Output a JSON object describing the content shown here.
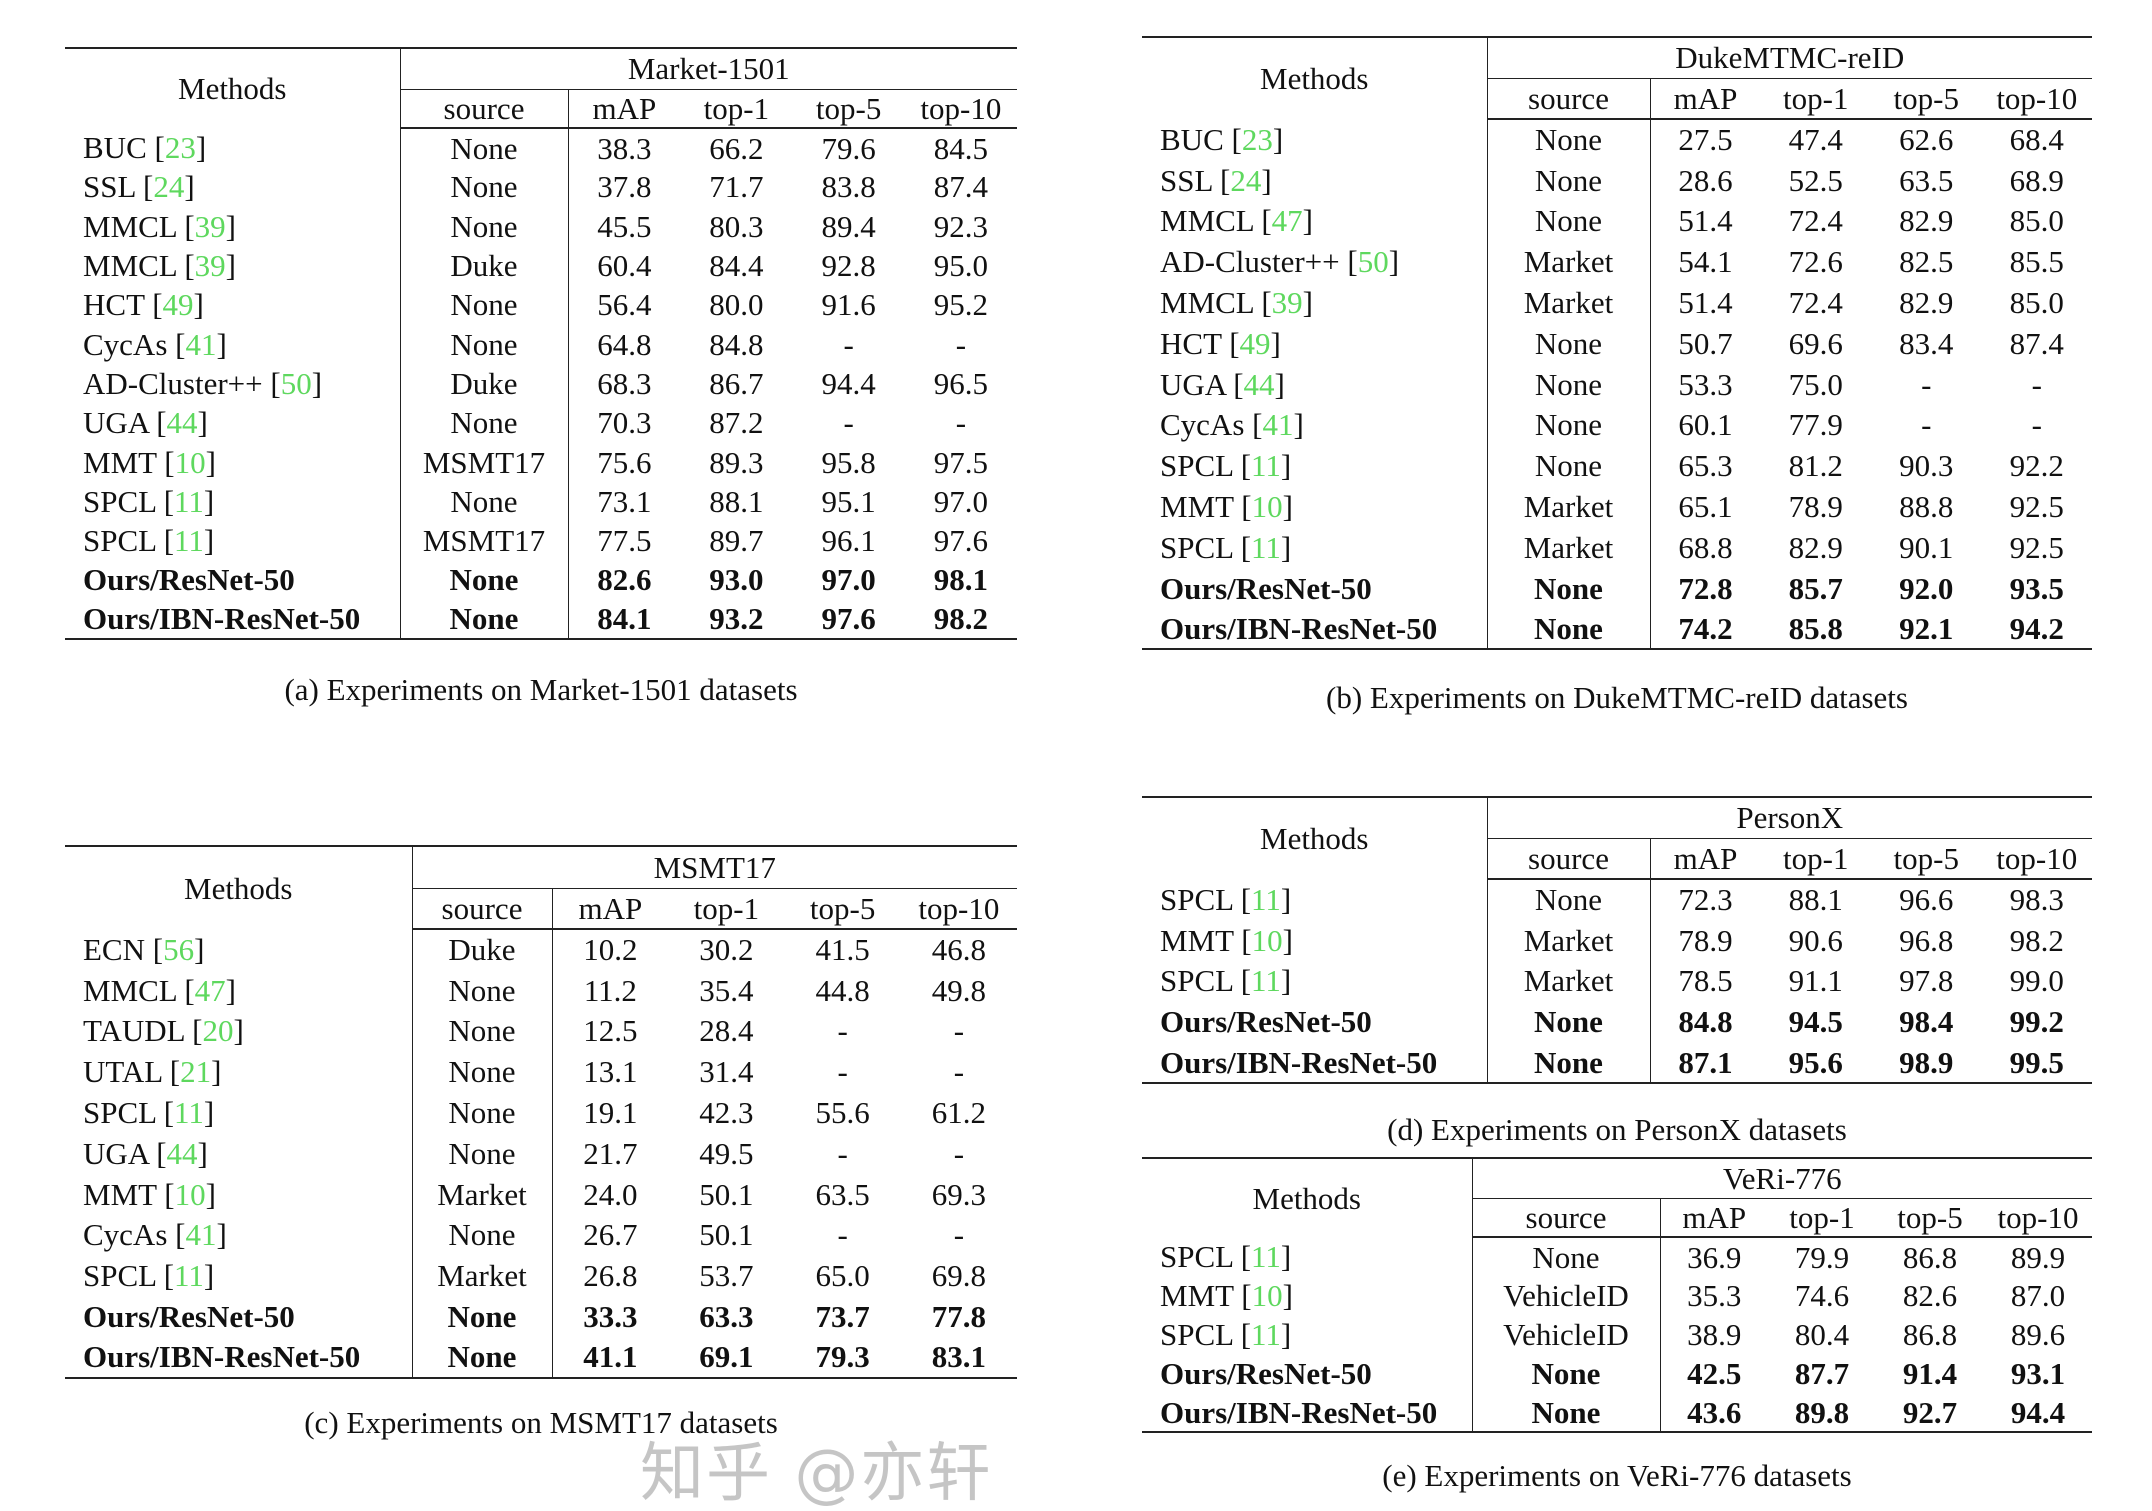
{
  "colors": {
    "ref_link": "#5ed85e",
    "text": "#111111",
    "rule": "#222222"
  },
  "columns": {
    "methods": "Methods",
    "source": "source",
    "metrics": [
      "mAP",
      "top-1",
      "top-5",
      "top-10"
    ]
  },
  "tables": [
    {
      "id": "a",
      "dataset": "Market-1501",
      "caption": "(a) Experiments on Market-1501 datasets",
      "rows": [
        {
          "name": "BUC",
          "ref": "23",
          "source": "None",
          "values": [
            "38.3",
            "66.2",
            "79.6",
            "84.5"
          ]
        },
        {
          "name": "SSL",
          "ref": "24",
          "source": "None",
          "values": [
            "37.8",
            "71.7",
            "83.8",
            "87.4"
          ]
        },
        {
          "name": "MMCL",
          "ref": "39",
          "source": "None",
          "values": [
            "45.5",
            "80.3",
            "89.4",
            "92.3"
          ]
        },
        {
          "name": "MMCL",
          "ref": "39",
          "source": "Duke",
          "values": [
            "60.4",
            "84.4",
            "92.8",
            "95.0"
          ]
        },
        {
          "name": "HCT",
          "ref": "49",
          "source": "None",
          "values": [
            "56.4",
            "80.0",
            "91.6",
            "95.2"
          ]
        },
        {
          "name": "CycAs",
          "ref": "41",
          "source": "None",
          "values": [
            "64.8",
            "84.8",
            "-",
            "-"
          ]
        },
        {
          "name": "AD-Cluster++",
          "ref": "50",
          "source": "Duke",
          "values": [
            "68.3",
            "86.7",
            "94.4",
            "96.5"
          ]
        },
        {
          "name": "UGA",
          "ref": "44",
          "source": "None",
          "values": [
            "70.3",
            "87.2",
            "-",
            "-"
          ]
        },
        {
          "name": "MMT",
          "ref": "10",
          "source": "MSMT17",
          "values": [
            "75.6",
            "89.3",
            "95.8",
            "97.5"
          ]
        },
        {
          "name": "SPCL",
          "ref": "11",
          "source": "None",
          "values": [
            "73.1",
            "88.1",
            "95.1",
            "97.0"
          ]
        },
        {
          "name": "SPCL",
          "ref": "11",
          "source": "MSMT17",
          "values": [
            "77.5",
            "89.7",
            "96.1",
            "97.6"
          ]
        },
        {
          "name": "Ours/ResNet-50",
          "ref": null,
          "bold": true,
          "source": "None",
          "values": [
            "82.6",
            "93.0",
            "97.0",
            "98.1"
          ]
        },
        {
          "name": "Ours/IBN-ResNet-50",
          "ref": null,
          "bold": true,
          "source": "None",
          "values": [
            "84.1",
            "93.2",
            "97.6",
            "98.2"
          ]
        }
      ]
    },
    {
      "id": "b",
      "dataset": "DukeMTMC-reID",
      "caption": "(b) Experiments on DukeMTMC-reID datasets",
      "rows": [
        {
          "name": "BUC",
          "ref": "23",
          "source": "None",
          "values": [
            "27.5",
            "47.4",
            "62.6",
            "68.4"
          ]
        },
        {
          "name": "SSL",
          "ref": "24",
          "source": "None",
          "values": [
            "28.6",
            "52.5",
            "63.5",
            "68.9"
          ]
        },
        {
          "name": "MMCL",
          "ref": "47",
          "source": "None",
          "values": [
            "51.4",
            "72.4",
            "82.9",
            "85.0"
          ]
        },
        {
          "name": "AD-Cluster++",
          "ref": "50",
          "source": "Market",
          "values": [
            "54.1",
            "72.6",
            "82.5",
            "85.5"
          ]
        },
        {
          "name": "MMCL",
          "ref": "39",
          "source": "Market",
          "values": [
            "51.4",
            "72.4",
            "82.9",
            "85.0"
          ]
        },
        {
          "name": "HCT",
          "ref": "49",
          "source": "None",
          "values": [
            "50.7",
            "69.6",
            "83.4",
            "87.4"
          ]
        },
        {
          "name": "UGA",
          "ref": "44",
          "source": "None",
          "values": [
            "53.3",
            "75.0",
            "-",
            "-"
          ]
        },
        {
          "name": "CycAs",
          "ref": "41",
          "source": "None",
          "values": [
            "60.1",
            "77.9",
            "-",
            "-"
          ]
        },
        {
          "name": "SPCL",
          "ref": "11",
          "source": "None",
          "values": [
            "65.3",
            "81.2",
            "90.3",
            "92.2"
          ]
        },
        {
          "name": "MMT",
          "ref": "10",
          "source": "Market",
          "values": [
            "65.1",
            "78.9",
            "88.8",
            "92.5"
          ]
        },
        {
          "name": "SPCL",
          "ref": "11",
          "source": "Market",
          "values": [
            "68.8",
            "82.9",
            "90.1",
            "92.5"
          ]
        },
        {
          "name": "Ours/ResNet-50",
          "ref": null,
          "bold": true,
          "source": "None",
          "values": [
            "72.8",
            "85.7",
            "92.0",
            "93.5"
          ]
        },
        {
          "name": "Ours/IBN-ResNet-50",
          "ref": null,
          "bold": true,
          "source": "None",
          "values": [
            "74.2",
            "85.8",
            "92.1",
            "94.2"
          ]
        }
      ]
    },
    {
      "id": "c",
      "dataset": "MSMT17",
      "caption": "(c) Experiments on MSMT17 datasets",
      "rows": [
        {
          "name": "ECN",
          "ref": "56",
          "source": "Duke",
          "values": [
            "10.2",
            "30.2",
            "41.5",
            "46.8"
          ]
        },
        {
          "name": "MMCL",
          "ref": "47",
          "source": "None",
          "values": [
            "11.2",
            "35.4",
            "44.8",
            "49.8"
          ]
        },
        {
          "name": "TAUDL",
          "ref": "20",
          "source": "None",
          "values": [
            "12.5",
            "28.4",
            "-",
            "-"
          ]
        },
        {
          "name": "UTAL",
          "ref": "21",
          "source": "None",
          "values": [
            "13.1",
            "31.4",
            "-",
            "-"
          ]
        },
        {
          "name": "SPCL",
          "ref": "11",
          "source": "None",
          "values": [
            "19.1",
            "42.3",
            "55.6",
            "61.2"
          ]
        },
        {
          "name": "UGA",
          "ref": "44",
          "source": "None",
          "values": [
            "21.7",
            "49.5",
            "-",
            "-"
          ]
        },
        {
          "name": "MMT",
          "ref": "10",
          "source": "Market",
          "values": [
            "24.0",
            "50.1",
            "63.5",
            "69.3"
          ]
        },
        {
          "name": "CycAs",
          "ref": "41",
          "source": "None",
          "values": [
            "26.7",
            "50.1",
            "-",
            "-"
          ]
        },
        {
          "name": "SPCL",
          "ref": "11",
          "source": "Market",
          "values": [
            "26.8",
            "53.7",
            "65.0",
            "69.8"
          ]
        },
        {
          "name": "Ours/ResNet-50",
          "ref": null,
          "bold": true,
          "source": "None",
          "values": [
            "33.3",
            "63.3",
            "73.7",
            "77.8"
          ]
        },
        {
          "name": "Ours/IBN-ResNet-50",
          "ref": null,
          "bold": true,
          "source": "None",
          "values": [
            "41.1",
            "69.1",
            "79.3",
            "83.1"
          ]
        }
      ]
    },
    {
      "id": "d",
      "dataset": "PersonX",
      "caption": "(d) Experiments on PersonX datasets",
      "rows": [
        {
          "name": "SPCL",
          "ref": "11",
          "source": "None",
          "values": [
            "72.3",
            "88.1",
            "96.6",
            "98.3"
          ]
        },
        {
          "name": "MMT",
          "ref": "10",
          "source": "Market",
          "values": [
            "78.9",
            "90.6",
            "96.8",
            "98.2"
          ]
        },
        {
          "name": "SPCL",
          "ref": "11",
          "source": "Market",
          "values": [
            "78.5",
            "91.1",
            "97.8",
            "99.0"
          ]
        },
        {
          "name": "Ours/ResNet-50",
          "ref": null,
          "bold": true,
          "source": "None",
          "values": [
            "84.8",
            "94.5",
            "98.4",
            "99.2"
          ]
        },
        {
          "name": "Ours/IBN-ResNet-50",
          "ref": null,
          "bold": true,
          "source": "None",
          "values": [
            "87.1",
            "95.6",
            "98.9",
            "99.5"
          ]
        }
      ]
    },
    {
      "id": "e",
      "dataset": "VeRi-776",
      "caption": "(e) Experiments on VeRi-776 datasets",
      "rows": [
        {
          "name": "SPCL",
          "ref": "11",
          "source": "None",
          "values": [
            "36.9",
            "79.9",
            "86.8",
            "89.9"
          ]
        },
        {
          "name": "MMT",
          "ref": "10",
          "source": "VehicleID",
          "values": [
            "35.3",
            "74.6",
            "82.6",
            "87.0"
          ]
        },
        {
          "name": "SPCL",
          "ref": "11",
          "source": "VehicleID",
          "values": [
            "38.9",
            "80.4",
            "86.8",
            "89.6"
          ]
        },
        {
          "name": "Ours/ResNet-50",
          "ref": null,
          "bold": true,
          "source": "None",
          "values": [
            "42.5",
            "87.7",
            "91.4",
            "93.1"
          ]
        },
        {
          "name": "Ours/IBN-ResNet-50",
          "ref": null,
          "bold": true,
          "source": "None",
          "values": [
            "43.6",
            "89.8",
            "92.7",
            "94.4"
          ]
        }
      ]
    }
  ],
  "watermark": "知乎 @亦轩"
}
